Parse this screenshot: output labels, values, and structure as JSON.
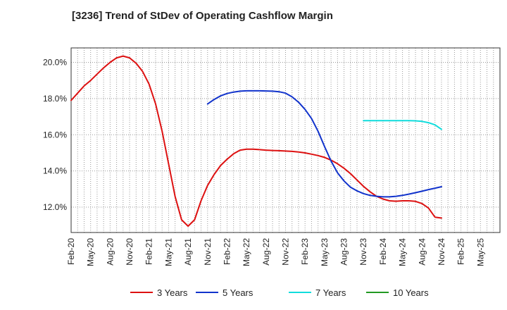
{
  "chart_data": {
    "type": "line",
    "title": "[3236]  Trend of StDev of Operating Cashflow Margin",
    "xlabel": "",
    "ylabel": "",
    "ylim": [
      10.6,
      20.8
    ],
    "yticks": [
      12.0,
      14.0,
      16.0,
      18.0,
      20.0
    ],
    "ytick_labels": [
      "12.0%",
      "14.0%",
      "16.0%",
      "18.0%",
      "20.0%"
    ],
    "x_start": "Feb-20",
    "xtick_labels": [
      "Feb-20",
      "May-20",
      "Aug-20",
      "Nov-20",
      "Feb-21",
      "May-21",
      "Aug-21",
      "Nov-21",
      "Feb-22",
      "May-22",
      "Aug-22",
      "Nov-22",
      "Feb-23",
      "May-23",
      "Aug-23",
      "Nov-23",
      "Feb-24",
      "May-24",
      "Aug-24",
      "Nov-24",
      "Feb-25",
      "May-25"
    ],
    "grid": true,
    "legend_position": "bottom",
    "series": [
      {
        "name": "3 Years",
        "color": "#dd1111",
        "x": [
          "Feb-20",
          "Mar-20",
          "Apr-20",
          "May-20",
          "Jun-20",
          "Jul-20",
          "Aug-20",
          "Sep-20",
          "Oct-20",
          "Nov-20",
          "Dec-20",
          "Jan-21",
          "Feb-21",
          "Mar-21",
          "Apr-21",
          "May-21",
          "Jun-21",
          "Jul-21",
          "Aug-21",
          "Sep-21",
          "Oct-21",
          "Nov-21",
          "Dec-21",
          "Jan-22",
          "Feb-22",
          "Mar-22",
          "Apr-22",
          "May-22",
          "Jun-22",
          "Jul-22",
          "Aug-22",
          "Sep-22",
          "Oct-22",
          "Nov-22",
          "Dec-22",
          "Jan-23",
          "Feb-23",
          "Mar-23",
          "Apr-23",
          "May-23",
          "Jun-23",
          "Jul-23",
          "Aug-23",
          "Sep-23",
          "Oct-23",
          "Nov-23",
          "Dec-23",
          "Jan-24",
          "Feb-24",
          "Mar-24",
          "Apr-24",
          "May-24",
          "Jun-24",
          "Jul-24",
          "Aug-24",
          "Sep-24",
          "Oct-24",
          "Nov-24"
        ],
        "values": [
          17.9,
          18.3,
          18.7,
          19.0,
          19.35,
          19.7,
          20.0,
          20.25,
          20.35,
          20.25,
          19.95,
          19.5,
          18.8,
          17.7,
          16.2,
          14.4,
          12.6,
          11.3,
          10.95,
          11.3,
          12.35,
          13.2,
          13.8,
          14.3,
          14.65,
          14.95,
          15.15,
          15.2,
          15.2,
          15.18,
          15.15,
          15.13,
          15.12,
          15.1,
          15.08,
          15.05,
          15.0,
          14.93,
          14.85,
          14.75,
          14.6,
          14.4,
          14.15,
          13.85,
          13.5,
          13.15,
          12.85,
          12.6,
          12.45,
          12.35,
          12.33,
          12.35,
          12.35,
          12.32,
          12.2,
          11.95,
          11.45,
          11.4
        ]
      },
      {
        "name": "5 Years",
        "color": "#1133cc",
        "x": [
          "Feb-21",
          "Mar-21",
          "Apr-21",
          "May-21",
          "Jun-21",
          "Jul-21",
          "Aug-21",
          "Sep-21",
          "Oct-21",
          "Nov-21",
          "Dec-21",
          "Jan-22",
          "Feb-22",
          "Mar-22",
          "Apr-22",
          "May-22",
          "Jun-22",
          "Jul-22",
          "Aug-22",
          "Sep-22",
          "Oct-22",
          "Nov-22",
          "Dec-22",
          "Jan-23",
          "Feb-23",
          "Mar-23",
          "Apr-23",
          "May-23",
          "Jun-23",
          "Jul-23",
          "Aug-23",
          "Sep-23",
          "Oct-23",
          "Nov-23",
          "Dec-23",
          "Jan-24",
          "Feb-24",
          "Mar-24",
          "Apr-24",
          "May-24",
          "Jun-24",
          "Jul-24",
          "Aug-24",
          "Sep-24",
          "Oct-24",
          "Nov-24"
        ],
        "values": [
          null,
          null,
          null,
          null,
          null,
          null,
          null,
          null,
          null,
          17.7,
          17.95,
          18.15,
          18.28,
          18.36,
          18.41,
          18.43,
          18.43,
          18.43,
          18.42,
          18.41,
          18.38,
          18.3,
          18.1,
          17.8,
          17.4,
          16.9,
          16.2,
          15.35,
          14.55,
          13.9,
          13.45,
          13.1,
          12.9,
          12.75,
          12.65,
          12.6,
          12.57,
          12.57,
          12.6,
          12.65,
          12.72,
          12.8,
          12.88,
          12.97,
          13.05,
          13.13
        ]
      },
      {
        "name": "7 Years",
        "color": "#11dddd",
        "x": [
          "Nov-23",
          "Dec-23",
          "Jan-24",
          "Feb-24",
          "Mar-24",
          "Apr-24",
          "May-24",
          "Jun-24",
          "Jul-24",
          "Aug-24",
          "Sep-24",
          "Oct-24",
          "Nov-24"
        ],
        "values": [
          16.78,
          16.78,
          16.78,
          16.78,
          16.78,
          16.78,
          16.78,
          16.78,
          16.77,
          16.74,
          16.67,
          16.55,
          16.3
        ]
      },
      {
        "name": "10 Years",
        "color": "#229922",
        "x": [],
        "values": []
      }
    ]
  }
}
